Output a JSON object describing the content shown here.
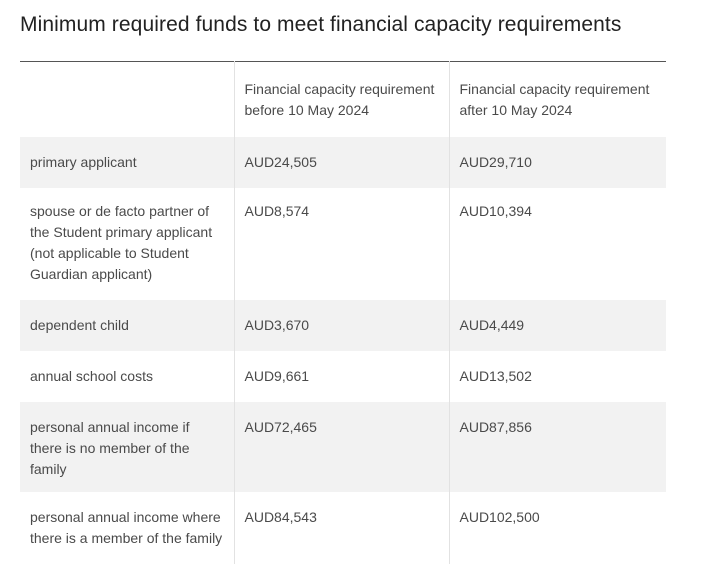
{
  "page": {
    "title": "Minimum required funds to meet financial capacity requirements"
  },
  "table": {
    "headers": [
      "",
      "Financial capacity requirement before 10 May 2024",
      "Financial capacity requirement after 10 May 2024"
    ],
    "rows": [
      [
        "primary applicant",
        "AUD24,505",
        "AUD29,710"
      ],
      [
        "spouse or de facto partner of the Student primary applicant (not applicable to Student Guardian applicant)",
        "AUD8,574",
        "AUD10,394"
      ],
      [
        "dependent child",
        "AUD3,670",
        "AUD4,449"
      ],
      [
        "annual school costs",
        "AUD9,661",
        "AUD13,502"
      ],
      [
        "personal annual income if there is no member of the family",
        "AUD72,465",
        "AUD87,856"
      ],
      [
        "personal annual income where there is a member of the family",
        "AUD84,543",
        "AUD102,500"
      ]
    ]
  }
}
